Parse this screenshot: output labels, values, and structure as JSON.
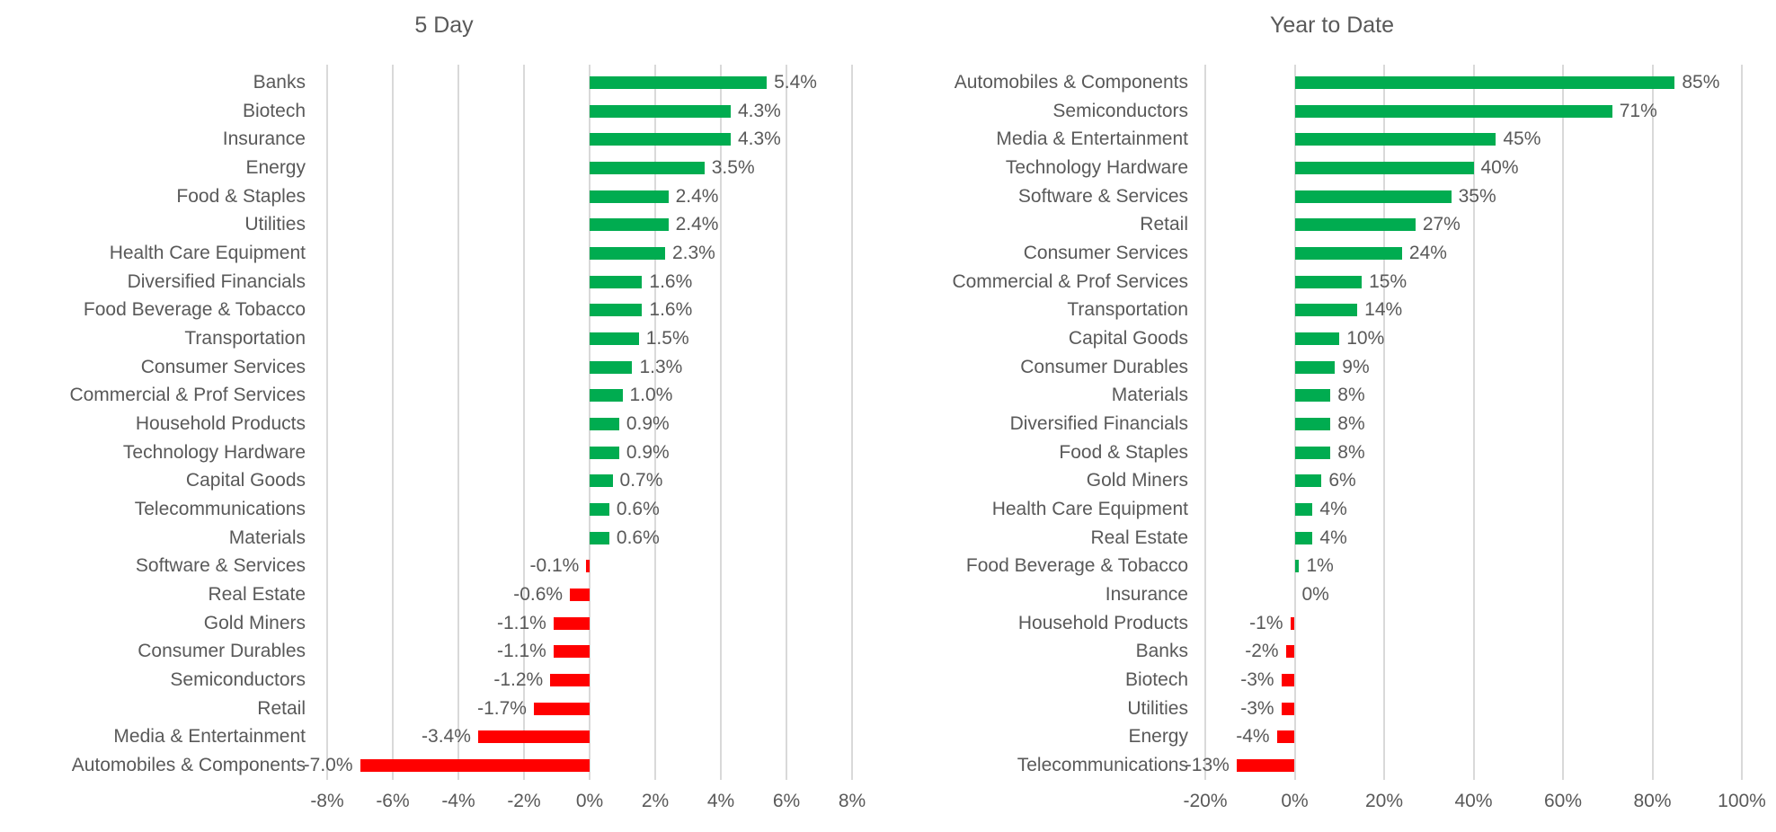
{
  "chart_data": [
    {
      "type": "bar",
      "orientation": "horizontal",
      "title": "5 Day",
      "categories": [
        "Banks",
        "Biotech",
        "Insurance",
        "Energy",
        "Food & Staples",
        "Utilities",
        "Health Care Equipment",
        "Diversified Financials",
        "Food Beverage & Tobacco",
        "Transportation",
        "Consumer Services",
        "Commercial & Prof Services",
        "Household Products",
        "Technology Hardware",
        "Capital Goods",
        "Telecommunications",
        "Materials",
        "Software & Services",
        "Real Estate",
        "Gold Miners",
        "Consumer Durables",
        "Semiconductors",
        "Retail",
        "Media & Entertainment",
        "Automobiles & Components"
      ],
      "values": [
        5.4,
        4.3,
        4.3,
        3.5,
        2.4,
        2.4,
        2.3,
        1.6,
        1.6,
        1.5,
        1.3,
        1.0,
        0.9,
        0.9,
        0.7,
        0.6,
        0.6,
        -0.1,
        -0.6,
        -1.1,
        -1.1,
        -1.2,
        -1.7,
        -3.4,
        -7.0
      ],
      "value_labels": [
        "5.4%",
        "4.3%",
        "4.3%",
        "3.5%",
        "2.4%",
        "2.4%",
        "2.3%",
        "1.6%",
        "1.6%",
        "1.5%",
        "1.3%",
        "1.0%",
        "0.9%",
        "0.9%",
        "0.7%",
        "0.6%",
        "0.6%",
        "-0.1%",
        "-0.6%",
        "-1.1%",
        "-1.1%",
        "-1.2%",
        "-1.7%",
        "-3.4%",
        "-7.0%"
      ],
      "xlim": [
        -8,
        8
      ],
      "x_ticks": [
        -8,
        -6,
        -4,
        -2,
        0,
        2,
        4,
        6,
        8
      ],
      "x_tick_labels": [
        "-8%",
        "-6%",
        "-4%",
        "-2%",
        "0%",
        "2%",
        "4%",
        "6%",
        "8%"
      ],
      "xlabel": "",
      "ylabel": "",
      "legend": "none",
      "grid": "vertical"
    },
    {
      "type": "bar",
      "orientation": "horizontal",
      "title": "Year to Date",
      "categories": [
        "Automobiles & Components",
        "Semiconductors",
        "Media & Entertainment",
        "Technology Hardware",
        "Software & Services",
        "Retail",
        "Consumer Services",
        "Commercial & Prof Services",
        "Transportation",
        "Capital Goods",
        "Consumer Durables",
        "Materials",
        "Diversified Financials",
        "Food & Staples",
        "Gold Miners",
        "Health Care Equipment",
        "Real Estate",
        "Food Beverage & Tobacco",
        "Insurance",
        "Household Products",
        "Banks",
        "Biotech",
        "Utilities",
        "Energy",
        "Telecommunications"
      ],
      "values": [
        85,
        71,
        45,
        40,
        35,
        27,
        24,
        15,
        14,
        10,
        9,
        8,
        8,
        8,
        6,
        4,
        4,
        1,
        0,
        -1,
        -2,
        -3,
        -3,
        -4,
        -13
      ],
      "value_labels": [
        "85%",
        "71%",
        "45%",
        "40%",
        "35%",
        "27%",
        "24%",
        "15%",
        "14%",
        "10%",
        "9%",
        "8%",
        "8%",
        "8%",
        "6%",
        "4%",
        "4%",
        "1%",
        "0%",
        "-1%",
        "-2%",
        "-3%",
        "-3%",
        "-4%",
        "-13%"
      ],
      "xlim": [
        -20,
        100
      ],
      "x_ticks": [
        -20,
        0,
        20,
        40,
        60,
        80,
        100
      ],
      "x_tick_labels": [
        "-20%",
        "0%",
        "20%",
        "40%",
        "60%",
        "80%",
        "100%"
      ],
      "xlabel": "",
      "ylabel": "",
      "legend": "none",
      "grid": "vertical"
    }
  ],
  "colors": {
    "positive_bar": "#00AC50",
    "negative_bar": "#FF0000",
    "gridline": "#D9D9D9",
    "text": "#595959"
  }
}
